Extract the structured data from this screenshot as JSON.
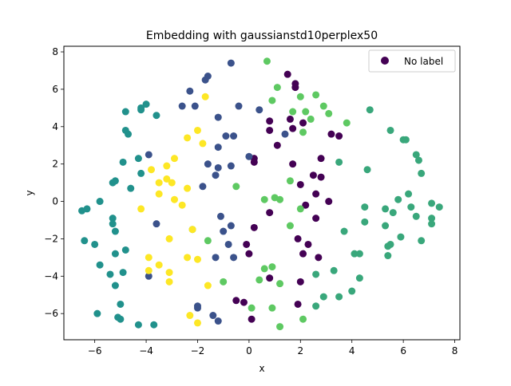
{
  "chart_data": {
    "type": "scatter",
    "title": "Embedding with gaussianstd10perplex50",
    "xlabel": "x",
    "ylabel": "y",
    "xlim": [
      -7.2,
      8.2
    ],
    "ylim": [
      -7.4,
      8.3
    ],
    "xticks": [
      -6,
      -4,
      -2,
      0,
      2,
      4,
      6,
      8
    ],
    "yticks": [
      -6,
      -4,
      -2,
      0,
      2,
      4,
      6,
      8
    ],
    "grid": false,
    "legend": {
      "placement": "top-right",
      "entries": [
        "No label"
      ]
    },
    "colormap": "viridis",
    "series": [
      {
        "name": "No label",
        "points": [
          {
            "x": 1.5,
            "y": 6.8,
            "c": 0.0
          },
          {
            "x": 1.8,
            "y": 6.3,
            "c": 0.0
          },
          {
            "x": 1.8,
            "y": 6.1,
            "c": 0.0
          },
          {
            "x": 2.1,
            "y": 4.2,
            "c": 0.0
          },
          {
            "x": 1.7,
            "y": 3.9,
            "c": 0.0
          },
          {
            "x": 1.6,
            "y": 4.4,
            "c": 0.0
          },
          {
            "x": 3.2,
            "y": 3.6,
            "c": 0.0
          },
          {
            "x": 3.5,
            "y": 3.5,
            "c": 0.0
          },
          {
            "x": 1.7,
            "y": 2.0,
            "c": 0.0
          },
          {
            "x": 2.8,
            "y": 2.3,
            "c": 0.0
          },
          {
            "x": 2.5,
            "y": 1.4,
            "c": 0.0
          },
          {
            "x": 2.8,
            "y": 1.3,
            "c": 0.0
          },
          {
            "x": 2.0,
            "y": 0.9,
            "c": 0.0
          },
          {
            "x": 2.6,
            "y": 0.4,
            "c": 0.0
          },
          {
            "x": 3.1,
            "y": 0.0,
            "c": 0.0
          },
          {
            "x": 2.2,
            "y": -0.2,
            "c": 0.0
          },
          {
            "x": 2.6,
            "y": -0.9,
            "c": 0.0
          },
          {
            "x": 1.9,
            "y": -2.0,
            "c": 0.0
          },
          {
            "x": 2.3,
            "y": -2.3,
            "c": 0.0
          },
          {
            "x": 2.1,
            "y": -2.8,
            "c": 0.0
          },
          {
            "x": 2.7,
            "y": -3.0,
            "c": 0.0
          },
          {
            "x": 1.1,
            "y": 3.0,
            "c": 0.0
          },
          {
            "x": 0.8,
            "y": 4.3,
            "c": 0.0
          },
          {
            "x": 0.8,
            "y": 3.8,
            "c": 0.0
          },
          {
            "x": 0.2,
            "y": 2.3,
            "c": 0.0
          },
          {
            "x": 0.2,
            "y": 2.1,
            "c": 0.0
          },
          {
            "x": 0.2,
            "y": -1.4,
            "c": 0.0
          },
          {
            "x": -0.1,
            "y": -2.3,
            "c": 0.0
          },
          {
            "x": 0.0,
            "y": -2.8,
            "c": 0.0
          },
          {
            "x": 2.0,
            "y": -4.3,
            "c": 0.0
          },
          {
            "x": 0.8,
            "y": -4.1,
            "c": 0.0
          },
          {
            "x": 1.9,
            "y": -5.5,
            "c": 0.0
          },
          {
            "x": 0.8,
            "y": -0.6,
            "c": 0.0
          },
          {
            "x": -0.5,
            "y": -5.3,
            "c": 0.0
          },
          {
            "x": -0.2,
            "y": -5.4,
            "c": 0.0
          },
          {
            "x": 0.1,
            "y": -6.3,
            "c": 0.0
          },
          {
            "x": -0.7,
            "y": 7.4,
            "c": 0.25
          },
          {
            "x": -1.6,
            "y": 6.7,
            "c": 0.25
          },
          {
            "x": -1.7,
            "y": 6.5,
            "c": 0.25
          },
          {
            "x": -2.3,
            "y": 5.9,
            "c": 0.25
          },
          {
            "x": -2.6,
            "y": 5.1,
            "c": 0.25
          },
          {
            "x": -2.1,
            "y": 5.1,
            "c": 0.25
          },
          {
            "x": -0.4,
            "y": 5.1,
            "c": 0.25
          },
          {
            "x": 0.4,
            "y": 4.9,
            "c": 0.25
          },
          {
            "x": -1.2,
            "y": 4.5,
            "c": 0.25
          },
          {
            "x": 1.4,
            "y": 3.6,
            "c": 0.25
          },
          {
            "x": -0.6,
            "y": 3.5,
            "c": 0.25
          },
          {
            "x": -0.9,
            "y": 3.5,
            "c": 0.25
          },
          {
            "x": -1.2,
            "y": 2.9,
            "c": 0.25
          },
          {
            "x": 0.0,
            "y": 2.4,
            "c": 0.25
          },
          {
            "x": -1.6,
            "y": 2.0,
            "c": 0.25
          },
          {
            "x": -1.2,
            "y": 1.8,
            "c": 0.25
          },
          {
            "x": -0.7,
            "y": 1.9,
            "c": 0.25
          },
          {
            "x": -1.3,
            "y": 1.4,
            "c": 0.25
          },
          {
            "x": -1.8,
            "y": 0.8,
            "c": 0.25
          },
          {
            "x": -1.1,
            "y": -0.8,
            "c": 0.25
          },
          {
            "x": -1.0,
            "y": -1.6,
            "c": 0.25
          },
          {
            "x": -0.7,
            "y": -1.3,
            "c": 0.25
          },
          {
            "x": -0.8,
            "y": -2.3,
            "c": 0.25
          },
          {
            "x": -0.6,
            "y": -3.0,
            "c": 0.25
          },
          {
            "x": -1.3,
            "y": -3.0,
            "c": 0.25
          },
          {
            "x": -2.0,
            "y": -5.6,
            "c": 0.25
          },
          {
            "x": -2.0,
            "y": -5.7,
            "c": 0.25
          },
          {
            "x": -1.4,
            "y": -6.1,
            "c": 0.25
          },
          {
            "x": -1.2,
            "y": -6.4,
            "c": 0.25
          },
          {
            "x": -3.6,
            "y": -1.2,
            "c": 0.25
          },
          {
            "x": -3.9,
            "y": -4.0,
            "c": 0.25
          },
          {
            "x": -3.9,
            "y": 2.5,
            "c": 0.25
          },
          {
            "x": -4.0,
            "y": 5.2,
            "c": 0.5
          },
          {
            "x": -4.2,
            "y": 5.0,
            "c": 0.5
          },
          {
            "x": -4.2,
            "y": 4.9,
            "c": 0.5
          },
          {
            "x": -3.6,
            "y": 4.6,
            "c": 0.5
          },
          {
            "x": -4.8,
            "y": 4.8,
            "c": 0.5
          },
          {
            "x": -4.8,
            "y": 3.8,
            "c": 0.5
          },
          {
            "x": -4.7,
            "y": 3.6,
            "c": 0.5
          },
          {
            "x": -4.3,
            "y": 2.3,
            "c": 0.5
          },
          {
            "x": -4.9,
            "y": 2.1,
            "c": 0.5
          },
          {
            "x": -4.2,
            "y": 1.5,
            "c": 0.5
          },
          {
            "x": -5.3,
            "y": 1.0,
            "c": 0.5
          },
          {
            "x": -5.2,
            "y": 1.1,
            "c": 0.5
          },
          {
            "x": -4.6,
            "y": 0.7,
            "c": 0.5
          },
          {
            "x": -5.8,
            "y": 0.0,
            "c": 0.5
          },
          {
            "x": -6.3,
            "y": -0.4,
            "c": 0.5
          },
          {
            "x": -6.5,
            "y": -0.5,
            "c": 0.5
          },
          {
            "x": -5.3,
            "y": -0.9,
            "c": 0.5
          },
          {
            "x": -5.3,
            "y": -1.2,
            "c": 0.5
          },
          {
            "x": -5.2,
            "y": -1.6,
            "c": 0.5
          },
          {
            "x": -6.0,
            "y": -2.3,
            "c": 0.5
          },
          {
            "x": -6.4,
            "y": -2.1,
            "c": 0.5
          },
          {
            "x": -4.8,
            "y": -2.6,
            "c": 0.5
          },
          {
            "x": -5.2,
            "y": -2.8,
            "c": 0.5
          },
          {
            "x": -5.8,
            "y": -3.4,
            "c": 0.5
          },
          {
            "x": -5.4,
            "y": -3.9,
            "c": 0.5
          },
          {
            "x": -4.9,
            "y": -3.8,
            "c": 0.5
          },
          {
            "x": -5.2,
            "y": -4.5,
            "c": 0.5
          },
          {
            "x": -5.0,
            "y": -5.5,
            "c": 0.5
          },
          {
            "x": -5.1,
            "y": -6.2,
            "c": 0.5
          },
          {
            "x": -5.0,
            "y": -6.3,
            "c": 0.5
          },
          {
            "x": -4.3,
            "y": -6.6,
            "c": 0.5
          },
          {
            "x": -3.7,
            "y": -6.6,
            "c": 0.5
          },
          {
            "x": -5.9,
            "y": -6.0,
            "c": 0.5
          },
          {
            "x": 5.5,
            "y": 3.8,
            "c": 0.6
          },
          {
            "x": 6.0,
            "y": 3.3,
            "c": 0.6
          },
          {
            "x": 6.1,
            "y": 3.3,
            "c": 0.6
          },
          {
            "x": 6.5,
            "y": 2.5,
            "c": 0.6
          },
          {
            "x": 6.6,
            "y": 2.2,
            "c": 0.6
          },
          {
            "x": 6.7,
            "y": 1.5,
            "c": 0.6
          },
          {
            "x": 6.2,
            "y": 0.4,
            "c": 0.6
          },
          {
            "x": 5.8,
            "y": 0.1,
            "c": 0.6
          },
          {
            "x": 6.3,
            "y": -0.3,
            "c": 0.6
          },
          {
            "x": 5.3,
            "y": -0.4,
            "c": 0.6
          },
          {
            "x": 5.6,
            "y": -0.6,
            "c": 0.6
          },
          {
            "x": 6.5,
            "y": -0.8,
            "c": 0.6
          },
          {
            "x": 7.1,
            "y": -0.1,
            "c": 0.6
          },
          {
            "x": 7.4,
            "y": -0.3,
            "c": 0.6
          },
          {
            "x": 7.1,
            "y": -0.9,
            "c": 0.6
          },
          {
            "x": 7.1,
            "y": -1.2,
            "c": 0.6
          },
          {
            "x": 5.3,
            "y": -1.3,
            "c": 0.6
          },
          {
            "x": 5.9,
            "y": -1.9,
            "c": 0.6
          },
          {
            "x": 6.7,
            "y": -2.1,
            "c": 0.6
          },
          {
            "x": 5.5,
            "y": -2.3,
            "c": 0.6
          },
          {
            "x": 5.4,
            "y": -2.4,
            "c": 0.6
          },
          {
            "x": 5.4,
            "y": -2.9,
            "c": 0.6
          },
          {
            "x": 4.5,
            "y": -1.1,
            "c": 0.6
          },
          {
            "x": 4.5,
            "y": -0.3,
            "c": 0.6
          },
          {
            "x": 4.6,
            "y": 1.7,
            "c": 0.6
          },
          {
            "x": 4.7,
            "y": 4.9,
            "c": 0.6
          },
          {
            "x": 3.7,
            "y": -1.6,
            "c": 0.6
          },
          {
            "x": 4.1,
            "y": -2.8,
            "c": 0.6
          },
          {
            "x": 4.3,
            "y": -2.8,
            "c": 0.6
          },
          {
            "x": 3.3,
            "y": -3.7,
            "c": 0.6
          },
          {
            "x": 4.3,
            "y": -4.1,
            "c": 0.6
          },
          {
            "x": 3.5,
            "y": -5.1,
            "c": 0.6
          },
          {
            "x": 4.0,
            "y": -4.8,
            "c": 0.6
          },
          {
            "x": 2.9,
            "y": -5.1,
            "c": 0.6
          },
          {
            "x": 2.6,
            "y": -5.6,
            "c": 0.6
          },
          {
            "x": 2.6,
            "y": -3.9,
            "c": 0.6
          },
          {
            "x": 3.5,
            "y": 2.1,
            "c": 0.6
          },
          {
            "x": 0.7,
            "y": 7.5,
            "c": 0.75
          },
          {
            "x": 1.1,
            "y": 6.1,
            "c": 0.75
          },
          {
            "x": 2.0,
            "y": 5.6,
            "c": 0.75
          },
          {
            "x": 2.6,
            "y": 5.7,
            "c": 0.75
          },
          {
            "x": 0.9,
            "y": 5.4,
            "c": 0.75
          },
          {
            "x": 2.9,
            "y": 5.1,
            "c": 0.75
          },
          {
            "x": 1.7,
            "y": 4.8,
            "c": 0.75
          },
          {
            "x": 2.2,
            "y": 4.8,
            "c": 0.75
          },
          {
            "x": 3.1,
            "y": 4.7,
            "c": 0.75
          },
          {
            "x": 2.4,
            "y": 4.4,
            "c": 0.75
          },
          {
            "x": 3.8,
            "y": 4.2,
            "c": 0.75
          },
          {
            "x": 2.1,
            "y": 3.7,
            "c": 0.75
          },
          {
            "x": 1.6,
            "y": 1.1,
            "c": 0.75
          },
          {
            "x": 2.0,
            "y": -0.4,
            "c": 0.75
          },
          {
            "x": 1.0,
            "y": 0.2,
            "c": 0.75
          },
          {
            "x": 1.2,
            "y": 0.1,
            "c": 0.75
          },
          {
            "x": 0.6,
            "y": 0.1,
            "c": 0.75
          },
          {
            "x": -0.5,
            "y": 0.8,
            "c": 0.75
          },
          {
            "x": 1.6,
            "y": -1.3,
            "c": 0.75
          },
          {
            "x": 0.6,
            "y": -3.6,
            "c": 0.75
          },
          {
            "x": 0.9,
            "y": -3.5,
            "c": 0.75
          },
          {
            "x": 0.4,
            "y": -4.2,
            "c": 0.75
          },
          {
            "x": 1.2,
            "y": -4.4,
            "c": 0.75
          },
          {
            "x": 0.1,
            "y": -5.7,
            "c": 0.75
          },
          {
            "x": 0.9,
            "y": -5.7,
            "c": 0.75
          },
          {
            "x": 2.1,
            "y": -6.3,
            "c": 0.75
          },
          {
            "x": 1.2,
            "y": -6.7,
            "c": 0.75
          },
          {
            "x": -1.6,
            "y": -2.1,
            "c": 0.75
          },
          {
            "x": -2.2,
            "y": -1.5,
            "c": 0.75
          },
          {
            "x": -1.0,
            "y": -4.3,
            "c": 0.75
          },
          {
            "x": -1.7,
            "y": 5.6,
            "c": 1.0
          },
          {
            "x": -2.0,
            "y": 3.8,
            "c": 1.0
          },
          {
            "x": -2.4,
            "y": 3.4,
            "c": 1.0
          },
          {
            "x": -1.8,
            "y": 3.1,
            "c": 1.0
          },
          {
            "x": -2.9,
            "y": 2.3,
            "c": 1.0
          },
          {
            "x": -3.2,
            "y": 1.9,
            "c": 1.0
          },
          {
            "x": -3.8,
            "y": 1.7,
            "c": 1.0
          },
          {
            "x": -3.2,
            "y": 1.2,
            "c": 1.0
          },
          {
            "x": -3.5,
            "y": 1.0,
            "c": 1.0
          },
          {
            "x": -3.0,
            "y": 1.0,
            "c": 1.0
          },
          {
            "x": -2.4,
            "y": 0.7,
            "c": 1.0
          },
          {
            "x": -3.5,
            "y": 0.4,
            "c": 1.0
          },
          {
            "x": -2.9,
            "y": 0.1,
            "c": 1.0
          },
          {
            "x": -2.6,
            "y": -0.2,
            "c": 1.0
          },
          {
            "x": -4.2,
            "y": -0.4,
            "c": 1.0
          },
          {
            "x": -2.2,
            "y": -1.5,
            "c": 1.0
          },
          {
            "x": -3.1,
            "y": -2.0,
            "c": 1.0
          },
          {
            "x": -3.9,
            "y": -3.0,
            "c": 1.0
          },
          {
            "x": -2.4,
            "y": -3.0,
            "c": 1.0
          },
          {
            "x": -2.0,
            "y": -3.1,
            "c": 1.0
          },
          {
            "x": -3.5,
            "y": -3.4,
            "c": 1.0
          },
          {
            "x": -3.9,
            "y": -3.7,
            "c": 1.0
          },
          {
            "x": -3.1,
            "y": -3.8,
            "c": 1.0
          },
          {
            "x": -3.1,
            "y": -4.3,
            "c": 1.0
          },
          {
            "x": -1.6,
            "y": -4.5,
            "c": 1.0
          },
          {
            "x": -2.3,
            "y": -6.1,
            "c": 1.0
          },
          {
            "x": -2.0,
            "y": -6.5,
            "c": 1.0
          }
        ]
      }
    ]
  }
}
